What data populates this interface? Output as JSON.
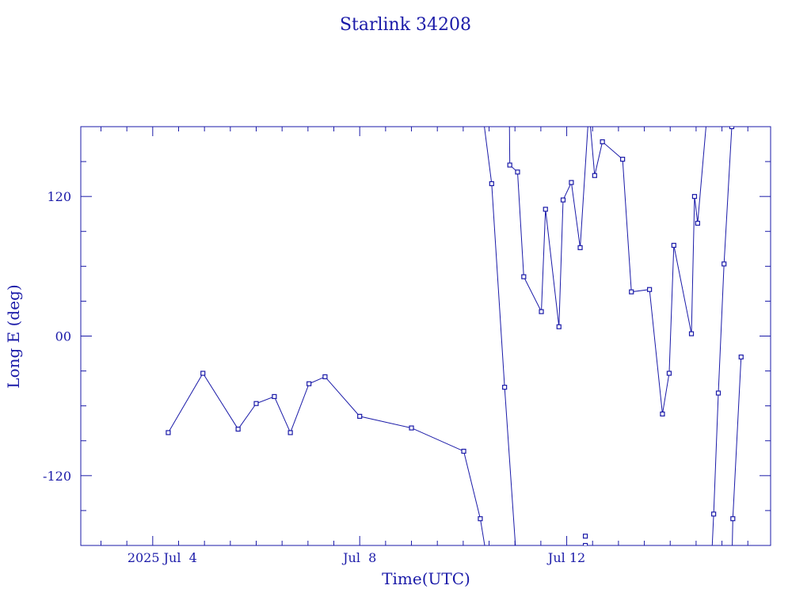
{
  "chart_data": {
    "type": "line",
    "title": "Starlink 34208",
    "xlabel": "Time(UTC)",
    "ylabel": "Long E (deg)",
    "x_tick_labels": [
      "2025 Jul  4",
      "Jul  8",
      "Jul 12"
    ],
    "x_ticks": [
      4,
      8,
      12
    ],
    "y_tick_labels": [
      "-120",
      "00",
      "120"
    ],
    "y_ticks": [
      -120,
      0,
      120
    ],
    "xlim": [
      2.61,
      15.94
    ],
    "ylim": [
      -180,
      180
    ],
    "x_unit": "day of July 2025 (UTC)",
    "y_unit": "degrees east longitude",
    "grid": false,
    "legend": "none",
    "series": [
      {
        "color": "#1a1aa8",
        "segments": [
          [
            [
              4.3,
              -83
            ],
            [
              4.97,
              -32
            ],
            [
              5.65,
              -80
            ],
            [
              6.0,
              -58
            ],
            [
              6.35,
              -52
            ],
            [
              6.66,
              -83
            ],
            [
              7.02,
              -41
            ],
            [
              7.33,
              -35
            ],
            [
              8.0,
              -69
            ],
            [
              9.0,
              -79
            ],
            [
              10.01,
              -99
            ],
            [
              10.33,
              -157
            ],
            [
              10.6,
              -230
            ]
          ],
          [
            [
              10.38,
              190
            ],
            [
              10.55,
              131
            ],
            [
              10.8,
              -44
            ],
            [
              11.07,
              -220
            ]
          ],
          [
            [
              10.87,
              300
            ],
            [
              10.9,
              147
            ],
            [
              11.05,
              141
            ],
            [
              11.17,
              51
            ],
            [
              11.51,
              21
            ],
            [
              11.59,
              109
            ],
            [
              11.85,
              8
            ],
            [
              11.93,
              117
            ],
            [
              12.09,
              132
            ],
            [
              12.26,
              76
            ],
            [
              12.43,
              195
            ],
            [
              12.54,
              138
            ],
            [
              12.69,
              167
            ],
            [
              13.08,
              152
            ],
            [
              13.25,
              38
            ],
            [
              13.6,
              40
            ],
            [
              13.85,
              -67
            ],
            [
              13.98,
              -32
            ],
            [
              14.07,
              78
            ],
            [
              14.41,
              2
            ],
            [
              14.47,
              120
            ],
            [
              14.53,
              97
            ],
            [
              14.75,
              210
            ]
          ],
          [
            [
              14.75,
              -240
            ],
            [
              14.84,
              -153
            ],
            [
              14.93,
              -49
            ],
            [
              15.04,
              62
            ],
            [
              15.19,
              180
            ]
          ],
          [
            [
              15.19,
              -200
            ],
            [
              15.21,
              -157
            ],
            [
              15.37,
              -18
            ]
          ]
        ]
      }
    ],
    "isolated_points": [
      {
        "x": 12.36,
        "y": -172
      },
      {
        "x": 12.36,
        "y": -180
      }
    ]
  }
}
